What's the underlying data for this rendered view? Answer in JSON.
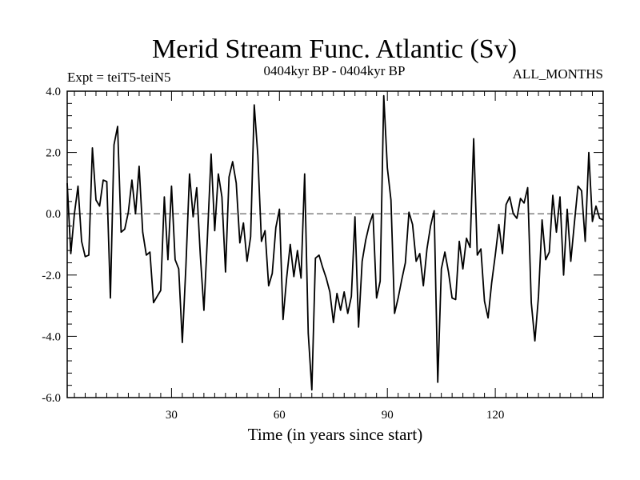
{
  "chart_data": {
    "type": "line",
    "title": "Merid Stream Func. Atlantic (Sv)",
    "subtitle_left": "Expt = teiT5-teiN5",
    "subtitle_center": "0404kyr BP - 0404kyr BP",
    "subtitle_right": "ALL_MONTHS",
    "xlabel": "Time (in years since start)",
    "ylabel": "",
    "xlim": [
      1,
      150
    ],
    "ylim": [
      -6.0,
      4.0
    ],
    "xticks": [
      30,
      60,
      90,
      120
    ],
    "yticks": [
      -6.0,
      -4.0,
      -2.0,
      0.0,
      2.0,
      4.0
    ],
    "ytick_labels": [
      "-6.0",
      "-4.0",
      "-2.0",
      "0.0",
      "2.0",
      "4.0"
    ],
    "reference_line": 0.0,
    "series": [
      {
        "name": "teiT5-teiN5",
        "x": [
          1,
          2,
          3,
          4,
          5,
          6,
          7,
          8,
          9,
          10,
          11,
          12,
          13,
          14,
          15,
          16,
          17,
          18,
          19,
          20,
          21,
          22,
          23,
          24,
          25,
          26,
          27,
          28,
          29,
          30,
          31,
          32,
          33,
          34,
          35,
          36,
          37,
          38,
          39,
          40,
          41,
          42,
          43,
          44,
          45,
          46,
          47,
          48,
          49,
          50,
          51,
          52,
          53,
          54,
          55,
          56,
          57,
          58,
          59,
          60,
          61,
          62,
          63,
          64,
          65,
          66,
          67,
          68,
          69,
          70,
          71,
          72,
          73,
          74,
          75,
          76,
          77,
          78,
          79,
          80,
          81,
          82,
          83,
          84,
          85,
          86,
          87,
          88,
          89,
          90,
          91,
          92,
          93,
          94,
          95,
          96,
          97,
          98,
          99,
          100,
          101,
          102,
          103,
          104,
          105,
          106,
          107,
          108,
          109,
          110,
          111,
          112,
          113,
          114,
          115,
          116,
          117,
          118,
          119,
          120,
          121,
          122,
          123,
          124,
          125,
          126,
          127,
          128,
          129,
          130,
          131,
          132,
          133,
          134,
          135,
          136,
          137,
          138,
          139,
          140,
          141,
          142,
          143,
          144,
          145,
          146,
          147,
          148,
          149,
          150
        ],
        "values": [
          1.0,
          -1.3,
          0.0,
          0.9,
          -0.9,
          -1.4,
          -1.35,
          2.15,
          0.45,
          0.25,
          1.1,
          1.05,
          -2.75,
          2.25,
          2.85,
          -0.6,
          -0.5,
          0.05,
          1.1,
          0.0,
          1.55,
          -0.6,
          -1.35,
          -1.25,
          -2.9,
          -2.7,
          -2.5,
          0.55,
          -1.5,
          0.9,
          -1.5,
          -1.8,
          -4.2,
          -1.7,
          1.3,
          -0.1,
          0.85,
          -1.35,
          -3.15,
          -0.7,
          1.95,
          -0.55,
          1.3,
          0.55,
          -1.9,
          1.2,
          1.7,
          1.0,
          -0.95,
          -0.3,
          -1.55,
          -0.75,
          3.55,
          1.9,
          -0.9,
          -0.55,
          -2.35,
          -1.95,
          -0.45,
          0.15,
          -3.45,
          -2.1,
          -1.0,
          -2.05,
          -1.2,
          -2.1,
          1.3,
          -3.9,
          -5.75,
          -1.45,
          -1.35,
          -1.75,
          -2.1,
          -2.55,
          -3.55,
          -2.6,
          -3.15,
          -2.55,
          -3.25,
          -2.7,
          -0.1,
          -3.7,
          -1.55,
          -0.85,
          -0.35,
          0.0,
          -2.75,
          -2.2,
          3.85,
          1.5,
          0.45,
          -3.25,
          -2.75,
          -2.15,
          -1.6,
          0.05,
          -0.35,
          -1.55,
          -1.3,
          -2.35,
          -1.15,
          -0.4,
          0.1,
          -5.5,
          -1.8,
          -1.25,
          -1.9,
          -2.75,
          -2.8,
          -0.9,
          -1.8,
          -0.8,
          -1.1,
          2.45,
          -1.35,
          -1.15,
          -2.85,
          -3.4,
          -2.25,
          -1.35,
          -0.35,
          -1.3,
          0.3,
          0.55,
          0.0,
          -0.15,
          0.5,
          0.35,
          0.85,
          -2.9,
          -4.15,
          -2.7,
          -0.2,
          -1.5,
          -1.25,
          0.6,
          -0.6,
          0.55,
          -2.0,
          0.15,
          -1.55,
          -0.3,
          0.9,
          0.75,
          -0.9,
          2.0,
          -0.25,
          0.25,
          -0.15,
          -0.2
        ]
      }
    ]
  }
}
